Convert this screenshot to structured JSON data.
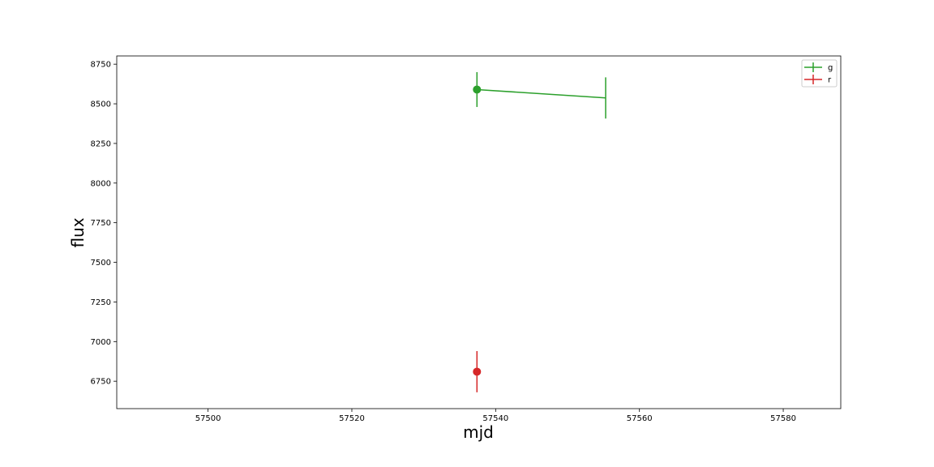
{
  "chart_data": {
    "type": "scatter",
    "xlabel": "mjd",
    "ylabel": "flux",
    "xlim": [
      57487.3,
      57588.0
    ],
    "ylim": [
      6577,
      8802
    ],
    "x_ticks": [
      57500,
      57520,
      57540,
      57560,
      57580
    ],
    "y_ticks": [
      6750,
      7000,
      7250,
      7500,
      7750,
      8000,
      8250,
      8500,
      8750
    ],
    "grid": false,
    "legend_position": "top-right",
    "series": [
      {
        "name": "g",
        "color": "#2ca02c",
        "points": [
          {
            "x": 57537.4,
            "y": 8590,
            "err": 110,
            "marker": true
          },
          {
            "x": 57555.3,
            "y": 8537,
            "err": 130,
            "marker": false
          }
        ]
      },
      {
        "name": "r",
        "color": "#d62728",
        "points": [
          {
            "x": 57537.4,
            "y": 6810,
            "err": 130,
            "marker": true
          }
        ]
      }
    ]
  }
}
